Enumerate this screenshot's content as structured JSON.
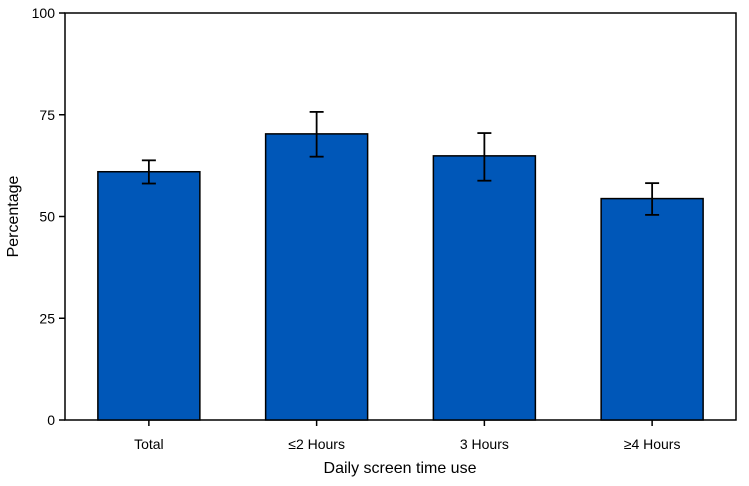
{
  "chart_data": {
    "type": "bar",
    "title": "",
    "xlabel": "Daily screen time use",
    "ylabel": "Percentage",
    "ylim": [
      0,
      100
    ],
    "yticks": [
      "0",
      "25",
      "50",
      "75",
      "100"
    ],
    "categories": [
      "Total",
      "≤2 Hours",
      "3 Hours",
      "≥4 Hours"
    ],
    "values": [
      61.0,
      70.3,
      64.9,
      54.4
    ],
    "ci_lower": [
      58.1,
      64.7,
      58.8,
      50.4
    ],
    "ci_upper": [
      63.8,
      75.7,
      70.5,
      58.2
    ],
    "grid": false,
    "legend": "none",
    "colors": {
      "bar_fill": "#0057b8",
      "bar_stroke": "#000000",
      "axis": "#000000"
    }
  }
}
